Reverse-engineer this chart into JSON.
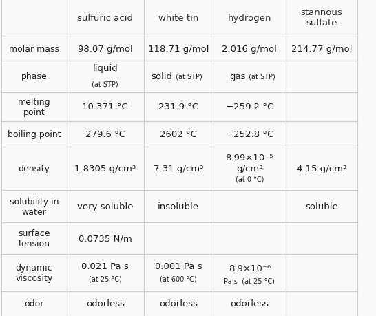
{
  "headers": [
    "",
    "sulfuric acid",
    "white tin",
    "hydrogen",
    "stannous\nsulfate"
  ],
  "rows": [
    {
      "label": "molar mass",
      "cells": [
        {
          "lines": [
            {
              "text": "98.07 g/mol",
              "size": 10,
              "style": "normal"
            }
          ]
        },
        {
          "lines": [
            {
              "text": "118.71 g/mol",
              "size": 10,
              "style": "normal"
            }
          ]
        },
        {
          "lines": [
            {
              "text": "2.016 g/mol",
              "size": 10,
              "style": "normal"
            }
          ]
        },
        {
          "lines": [
            {
              "text": "214.77 g/mol",
              "size": 10,
              "style": "normal"
            }
          ]
        }
      ]
    },
    {
      "label": "phase",
      "cells": [
        {
          "lines": [
            {
              "text": "liquid",
              "size": 10,
              "style": "normal"
            },
            {
              "text": "(at STP)",
              "size": 7.5,
              "style": "normal"
            }
          ]
        },
        {
          "lines": [
            {
              "text": "solid",
              "size": 10,
              "style": "normal",
              "suffix": " (at STP)",
              "suffix_size": 7.5
            }
          ]
        },
        {
          "lines": [
            {
              "text": "gas",
              "size": 10,
              "style": "normal",
              "suffix": " (at STP)",
              "suffix_size": 7.5
            }
          ]
        },
        {
          "lines": []
        }
      ]
    },
    {
      "label": "melting\npoint",
      "cells": [
        {
          "lines": [
            {
              "text": "10.371 °C",
              "size": 10,
              "style": "normal"
            }
          ]
        },
        {
          "lines": [
            {
              "text": "231.9 °C",
              "size": 10,
              "style": "normal"
            }
          ]
        },
        {
          "lines": [
            {
              "text": "−259.2 °C",
              "size": 10,
              "style": "normal"
            }
          ]
        },
        {
          "lines": []
        }
      ]
    },
    {
      "label": "boiling point",
      "cells": [
        {
          "lines": [
            {
              "text": "279.6 °C",
              "size": 10,
              "style": "normal"
            }
          ]
        },
        {
          "lines": [
            {
              "text": "2602 °C",
              "size": 10,
              "style": "normal"
            }
          ]
        },
        {
          "lines": [
            {
              "text": "−252.8 °C",
              "size": 10,
              "style": "normal"
            }
          ]
        },
        {
          "lines": []
        }
      ]
    },
    {
      "label": "density",
      "cells": [
        {
          "lines": [
            {
              "text": "1.8305 g/cm³",
              "size": 10,
              "style": "normal"
            }
          ]
        },
        {
          "lines": [
            {
              "text": "7.31 g/cm³",
              "size": 10,
              "style": "normal"
            }
          ]
        },
        {
          "lines": [
            {
              "text": "8.99×10⁻⁵",
              "size": 10,
              "style": "normal"
            },
            {
              "text": "g/cm³",
              "size": 10,
              "style": "normal"
            },
            {
              "text": "(at 0 °C)",
              "size": 7.5,
              "style": "normal"
            }
          ]
        },
        {
          "lines": [
            {
              "text": "4.15 g/cm³",
              "size": 10,
              "style": "normal"
            }
          ]
        }
      ]
    },
    {
      "label": "solubility in\nwater",
      "cells": [
        {
          "lines": [
            {
              "text": "very soluble",
              "size": 10,
              "style": "normal"
            }
          ]
        },
        {
          "lines": [
            {
              "text": "insoluble",
              "size": 10,
              "style": "normal"
            }
          ]
        },
        {
          "lines": []
        },
        {
          "lines": [
            {
              "text": "soluble",
              "size": 10,
              "style": "normal"
            }
          ]
        }
      ]
    },
    {
      "label": "surface\ntension",
      "cells": [
        {
          "lines": [
            {
              "text": "0.0735 N/m",
              "size": 10,
              "style": "normal"
            }
          ]
        },
        {
          "lines": []
        },
        {
          "lines": []
        },
        {
          "lines": []
        }
      ]
    },
    {
      "label": "dynamic\nviscosity",
      "cells": [
        {
          "lines": [
            {
              "text": "0.021 Pa s",
              "size": 10,
              "style": "normal"
            },
            {
              "text": "(at 25 °C)",
              "size": 7.5,
              "style": "normal"
            }
          ]
        },
        {
          "lines": [
            {
              "text": "0.001 Pa s",
              "size": 10,
              "style": "normal"
            },
            {
              "text": "(at 600 °C)",
              "size": 7.5,
              "style": "normal"
            }
          ]
        },
        {
          "lines": [
            {
              "text": "8.9×10⁻⁶",
              "size": 10,
              "style": "normal"
            },
            {
              "text": "Pa s  (at 25 °C)",
              "size": 7.5,
              "style": "normal"
            }
          ]
        },
        {
          "lines": []
        }
      ]
    },
    {
      "label": "odor",
      "cells": [
        {
          "lines": [
            {
              "text": "odorless",
              "size": 10,
              "style": "normal"
            }
          ]
        },
        {
          "lines": [
            {
              "text": "odorless",
              "size": 10,
              "style": "normal"
            }
          ]
        },
        {
          "lines": [
            {
              "text": "odorless",
              "size": 10,
              "style": "normal"
            }
          ]
        },
        {
          "lines": []
        }
      ]
    }
  ],
  "bg_color": "#f9f9f9",
  "line_color": "#cccccc",
  "text_color": "#222222",
  "header_text_color": "#333333"
}
